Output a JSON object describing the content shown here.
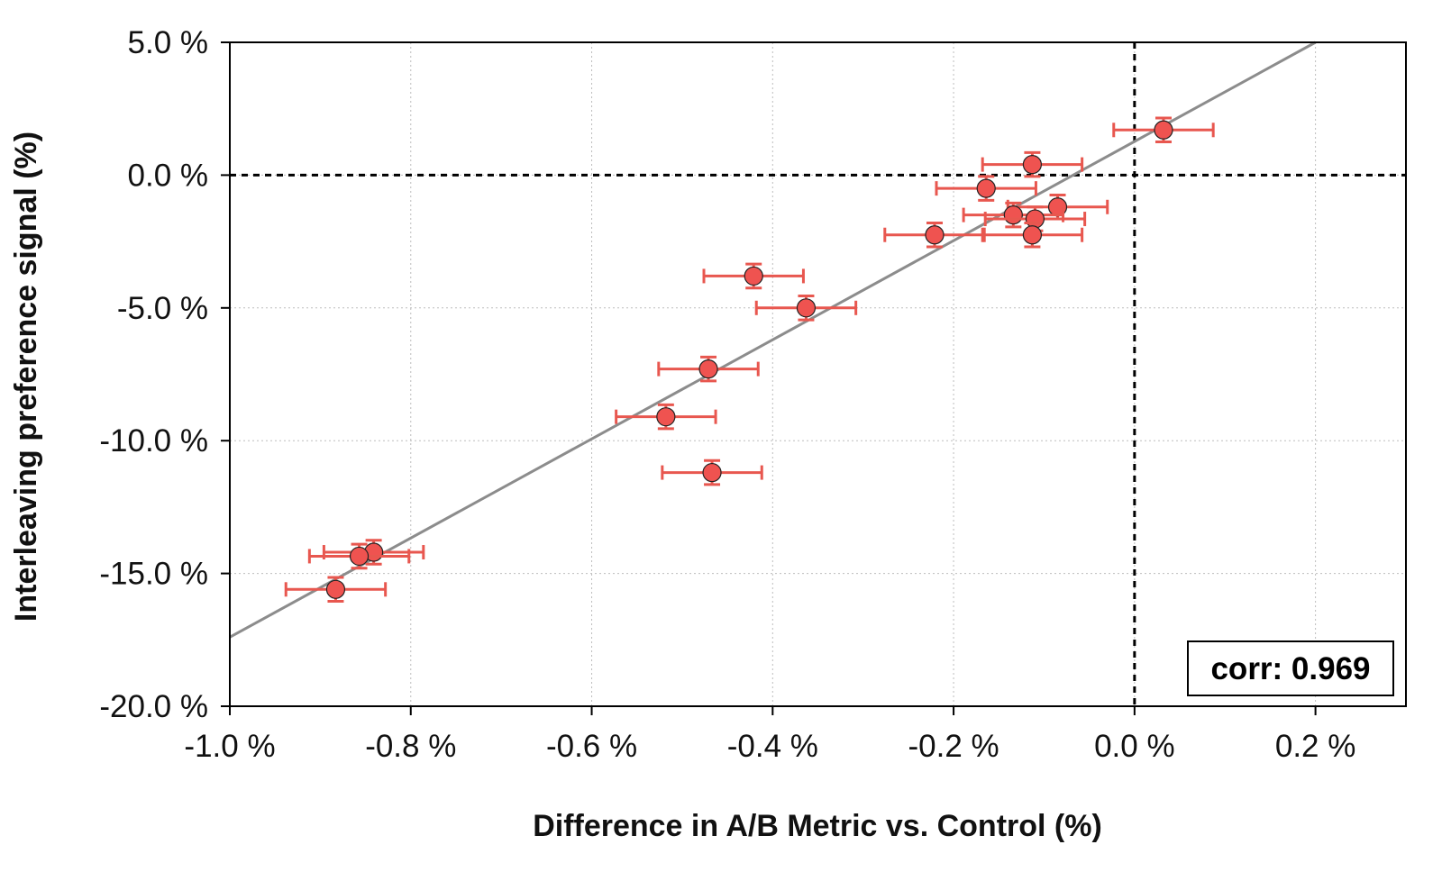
{
  "chart_data": {
    "type": "scatter",
    "title": "",
    "xlabel": "Difference in A/B Metric vs. Control (%)",
    "ylabel": "Interleaving preference signal (%)",
    "xlim": [
      -1.0,
      0.3
    ],
    "ylim": [
      -20.0,
      5.0
    ],
    "x_ticks": [
      -1.0,
      -0.8,
      -0.6,
      -0.4,
      -0.2,
      0.0,
      0.2
    ],
    "x_tick_labels": [
      "-1.0 %",
      "-0.8 %",
      "-0.6 %",
      "-0.4 %",
      "-0.2 %",
      "0.0 %",
      "0.2 %"
    ],
    "y_ticks": [
      5.0,
      0.0,
      -5.0,
      -10.0,
      -15.0,
      -20.0
    ],
    "y_tick_labels": [
      "5.0 %",
      "0.0 %",
      "-5.0 %",
      "-10.0 %",
      "-15.0 %",
      "-20.0 %"
    ],
    "grid": true,
    "reference_lines": {
      "x": 0.0,
      "y": 0.0,
      "style": "dashed"
    },
    "fit_line": {
      "x": [
        -1.0,
        0.2
      ],
      "y": [
        -17.4,
        5.0
      ]
    },
    "annotation": {
      "text": "corr: 0.969",
      "position": "bottom-right"
    },
    "colors": {
      "marker": "#ef5350",
      "error_bar": "#e8574f",
      "fit_line": "#8c8c8c",
      "grid": "#bdbdbd"
    },
    "points": [
      {
        "x": 0.032,
        "y": 1.7,
        "xerr": 0.055,
        "yerr": 0.45
      },
      {
        "x": -0.113,
        "y": 0.4,
        "xerr": 0.055,
        "yerr": 0.45
      },
      {
        "x": -0.164,
        "y": -0.5,
        "xerr": 0.055,
        "yerr": 0.45
      },
      {
        "x": -0.085,
        "y": -1.2,
        "xerr": 0.055,
        "yerr": 0.45
      },
      {
        "x": -0.134,
        "y": -1.5,
        "xerr": 0.055,
        "yerr": 0.45
      },
      {
        "x": -0.11,
        "y": -1.65,
        "xerr": 0.055,
        "yerr": 0.45
      },
      {
        "x": -0.221,
        "y": -2.25,
        "xerr": 0.055,
        "yerr": 0.45
      },
      {
        "x": -0.113,
        "y": -2.25,
        "xerr": 0.055,
        "yerr": 0.45
      },
      {
        "x": -0.421,
        "y": -3.8,
        "xerr": 0.055,
        "yerr": 0.45
      },
      {
        "x": -0.363,
        "y": -5.0,
        "xerr": 0.055,
        "yerr": 0.45
      },
      {
        "x": -0.471,
        "y": -7.3,
        "xerr": 0.055,
        "yerr": 0.45
      },
      {
        "x": -0.518,
        "y": -9.1,
        "xerr": 0.055,
        "yerr": 0.45
      },
      {
        "x": -0.467,
        "y": -11.2,
        "xerr": 0.055,
        "yerr": 0.45
      },
      {
        "x": -0.841,
        "y": -14.2,
        "xerr": 0.055,
        "yerr": 0.45
      },
      {
        "x": -0.857,
        "y": -14.35,
        "xerr": 0.055,
        "yerr": 0.45
      },
      {
        "x": -0.883,
        "y": -15.6,
        "xerr": 0.055,
        "yerr": 0.45
      }
    ]
  }
}
